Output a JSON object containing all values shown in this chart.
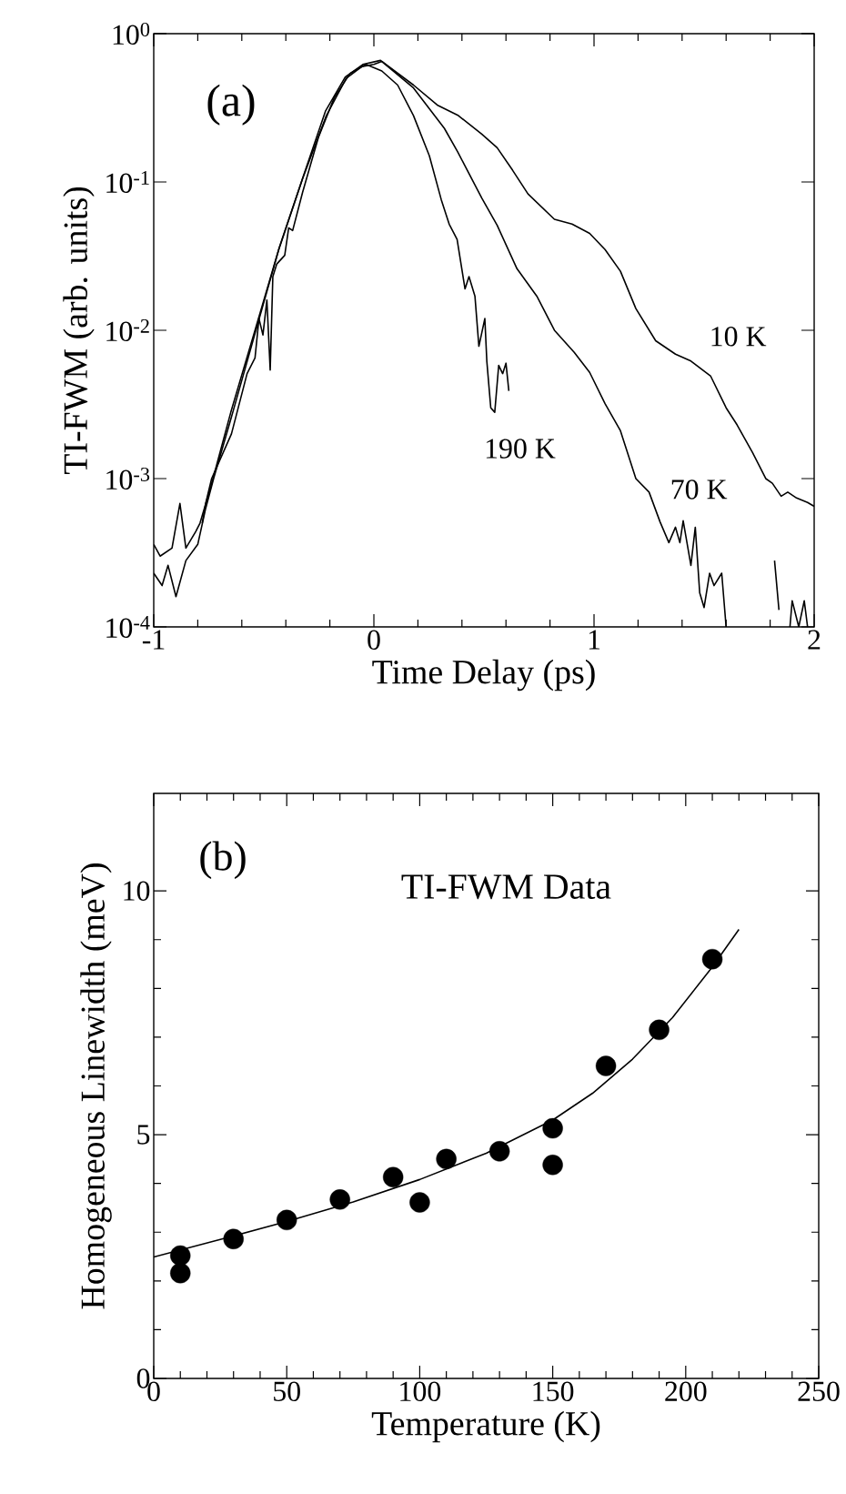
{
  "chart_data": [
    {
      "type": "line",
      "xlabel": "Time Delay (ps)",
      "ylabel": "TI-FWM (arb. units)",
      "log": "y",
      "xlim": [
        -1,
        2
      ],
      "ylim": [
        0.0001,
        1
      ],
      "xticks": [
        -1,
        0,
        1,
        2
      ],
      "yticks": [
        {
          "value": 0.0001,
          "label": "10$^{-4}$"
        },
        {
          "value": 0.001,
          "label": "10$^{-3}$"
        },
        {
          "value": 0.01,
          "label": "10$^{-2}$"
        },
        {
          "value": 0.1,
          "label": "10$^{-1}$"
        },
        {
          "value": 1,
          "label": "10$^{0}$"
        }
      ],
      "annotations": [
        "(a)"
      ],
      "series": [
        {
          "name": "10 K",
          "color": "#000000",
          "x": [
            -1,
            -0.962,
            -0.935,
            -0.899,
            -0.854,
            -0.8,
            -0.764,
            -0.728,
            -0.647,
            -0.54,
            -0.432,
            -0.324,
            -0.216,
            -0.126,
            -0.054,
            0,
            0.036,
            0.18,
            0.288,
            0.384,
            0.49,
            0.56,
            0.63,
            0.7,
            0.82,
            0.9,
            0.98,
            1.05,
            1.12,
            1.19,
            1.28,
            1.37,
            1.44,
            1.53,
            1.6,
            1.65,
            1.72,
            1.78,
            1.81,
            1.85,
            1.88,
            1.92,
            1.97,
            2.0
          ],
          "values": [
            0.00023,
            0.00019,
            0.00026,
            0.00016,
            0.00028,
            0.00036,
            0.00063,
            0.001,
            0.0026,
            0.0095,
            0.035,
            0.105,
            0.28,
            0.5,
            0.6,
            0.62,
            0.65,
            0.45,
            0.33,
            0.28,
            0.21,
            0.17,
            0.12,
            0.083,
            0.056,
            0.052,
            0.045,
            0.035,
            0.025,
            0.014,
            0.0085,
            0.0069,
            0.0062,
            0.0049,
            0.003,
            0.0023,
            0.0015,
            0.001,
            0.00093,
            0.00076,
            0.00081,
            0.00074,
            0.00069,
            0.00065
          ]
        },
        {
          "name": "70 K",
          "color": "#000000",
          "x": [
            -1,
            -0.971,
            -0.917,
            -0.881,
            -0.854,
            -0.809,
            -0.79,
            -0.74,
            -0.65,
            -0.54,
            -0.43,
            -0.32,
            -0.22,
            -0.13,
            -0.05,
            0.03,
            0.18,
            0.32,
            0.38,
            0.49,
            0.56,
            0.65,
            0.74,
            0.82,
            0.91,
            0.98,
            1.05,
            1.12,
            1.19,
            1.25,
            1.3,
            1.34,
            1.37,
            1.39,
            1.405,
            1.44,
            1.46,
            1.48,
            1.5,
            1.525,
            1.545,
            1.58,
            1.6,
            1.7,
            1.82,
            1.84,
            1.86,
            1.89,
            1.9,
            1.93,
            1.955,
            1.97
          ],
          "values": [
            0.00036,
            0.0003,
            0.00034,
            0.00068,
            0.00034,
            0.00044,
            0.0005,
            0.00089,
            0.0028,
            0.01,
            0.036,
            0.11,
            0.3,
            0.51,
            0.62,
            0.66,
            0.43,
            0.23,
            0.16,
            0.078,
            0.051,
            0.026,
            0.017,
            0.01,
            0.0071,
            0.0052,
            0.0032,
            0.0021,
            0.001,
            0.00081,
            0.00051,
            0.00037,
            0.00047,
            0.00037,
            0.00052,
            0.00026,
            0.00047,
            0.00017,
            0.000135,
            0.00023,
            0.00019,
            0.00023,
            0.0001,
            null,
            0.00028,
            0.00013,
            null,
            0.0001,
            0.00015,
            0.0001,
            0.00015,
            0.0001
          ]
        },
        {
          "name": "190 K",
          "color": "#000000",
          "x": [
            -0.78,
            -0.764,
            -0.737,
            -0.647,
            -0.576,
            -0.54,
            -0.522,
            -0.504,
            -0.486,
            -0.471,
            -0.459,
            -0.441,
            -0.405,
            -0.387,
            -0.369,
            -0.324,
            -0.252,
            -0.18,
            -0.108,
            -0.036,
            0.036,
            0.108,
            0.18,
            0.252,
            0.306,
            0.342,
            0.378,
            0.414,
            0.432,
            0.459,
            0.477,
            0.504,
            0.513,
            0.531,
            0.549,
            0.567,
            0.585,
            0.6,
            0.613
          ],
          "values": [
            0.0005,
            0.00068,
            0.001,
            0.002,
            0.0051,
            0.0065,
            0.012,
            0.0093,
            0.016,
            0.0054,
            0.023,
            0.028,
            0.032,
            0.049,
            0.047,
            0.085,
            0.2,
            0.37,
            0.54,
            0.62,
            0.56,
            0.45,
            0.28,
            0.15,
            0.076,
            0.052,
            0.041,
            0.019,
            0.023,
            0.017,
            0.0078,
            0.012,
            0.0062,
            0.003,
            0.0028,
            0.0058,
            0.0051,
            0.006,
            0.0039
          ]
        }
      ]
    },
    {
      "type": "scatter",
      "xlabel": "Temperature (K)",
      "ylabel": "Homogeneous Linewidth (meV)",
      "xlim": [
        0,
        250
      ],
      "ylim": [
        0,
        12
      ],
      "xticks": [
        0,
        50,
        100,
        150,
        200,
        250
      ],
      "yticks": [
        0,
        5,
        10
      ],
      "annotations": [
        "(b)",
        "TI-FWM Data"
      ],
      "series": [
        {
          "type": "scatter",
          "marker": "circle",
          "color": "#000000",
          "x": [
            10,
            10,
            30,
            50,
            70,
            90,
            100,
            110,
            130,
            150,
            150,
            170,
            190,
            210
          ],
          "values": [
            2.52,
            2.16,
            2.86,
            3.25,
            3.67,
            4.13,
            3.61,
            4.5,
            4.66,
            5.13,
            4.38,
            6.41,
            7.15,
            8.6
          ]
        },
        {
          "type": "line",
          "color": "#000000",
          "x": [
            0,
            25,
            50,
            75,
            100,
            125,
            150,
            165,
            180,
            195,
            210,
            220
          ],
          "values": [
            2.49,
            2.85,
            3.22,
            3.62,
            4.08,
            4.62,
            5.3,
            5.85,
            6.55,
            7.4,
            8.44,
            9.21
          ]
        }
      ]
    }
  ]
}
